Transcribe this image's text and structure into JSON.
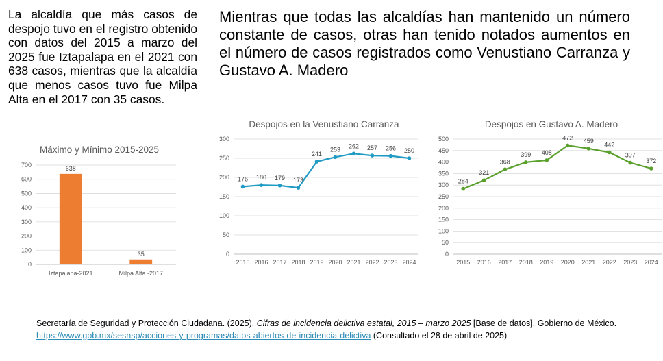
{
  "left_paragraph": "La alcaldía que más casos de despojo tuvo en el registro obtenido con datos del 2015 a marzo del 2025 fue Iztapalapa en el 2021 con 638 casos, mientras que la alcaldía que menos casos tuvo fue Milpa Alta en el 2017 con 35 casos.",
  "right_paragraph": "Mientras que todas las alcaldías han mantenido un número constante de casos, otras han tenido notados aumentos en el número de casos registrados como Venustiano Carranza y Gustavo A. Madero",
  "colors": {
    "bar": "#ed7d31",
    "line_vc": "#1f9bc4",
    "line_gam": "#5aa02c"
  },
  "chart_data": [
    {
      "type": "bar",
      "title": "Máximo y Mínimo 2015-2025",
      "categories": [
        "Iztapalapa-2021",
        "Milpa Alta -2017"
      ],
      "values": [
        638,
        35
      ],
      "data_labels": [
        "638",
        "35"
      ],
      "ylim": [
        0,
        700
      ],
      "yticks": [
        0,
        100,
        200,
        300,
        400,
        500,
        600,
        700
      ],
      "grid": true
    },
    {
      "type": "line",
      "title": "Despojos en la Venustiano Carranza",
      "x": [
        "2015",
        "2016",
        "2017",
        "2018",
        "2019",
        "2020",
        "2021",
        "2022",
        "2023",
        "2024"
      ],
      "values": [
        176,
        180,
        179,
        173,
        241,
        253,
        262,
        257,
        256,
        250
      ],
      "ylim": [
        0,
        300
      ],
      "yticks": [
        0,
        50,
        100,
        150,
        200,
        250,
        300
      ],
      "grid": true
    },
    {
      "type": "line",
      "title": "Despojos en Gustavo A. Madero",
      "x": [
        "2015",
        "2016",
        "2017",
        "2018",
        "2019",
        "2020",
        "2021",
        "2022",
        "2023",
        "2024"
      ],
      "values": [
        284,
        321,
        368,
        399,
        408,
        472,
        459,
        442,
        397,
        372
      ],
      "ylim": [
        0,
        500
      ],
      "yticks": [
        0,
        50,
        100,
        150,
        200,
        250,
        300,
        350,
        400,
        450,
        500
      ],
      "grid": true
    }
  ],
  "citation": {
    "part1": "Secretaría de Seguridad y Protección Ciudadana. (2025). ",
    "title_italic": "Cifras de incidencia delictiva estatal, 2015 – marzo 2025",
    "part2": " [Base de datos]. Gobierno de México. ",
    "link": "https://www.gob.mx/sesnsp/acciones-y-programas/datos-abiertos-de-incidencia-delictiva",
    "part3": " (Consultado el 28 de abril de 2025)"
  }
}
